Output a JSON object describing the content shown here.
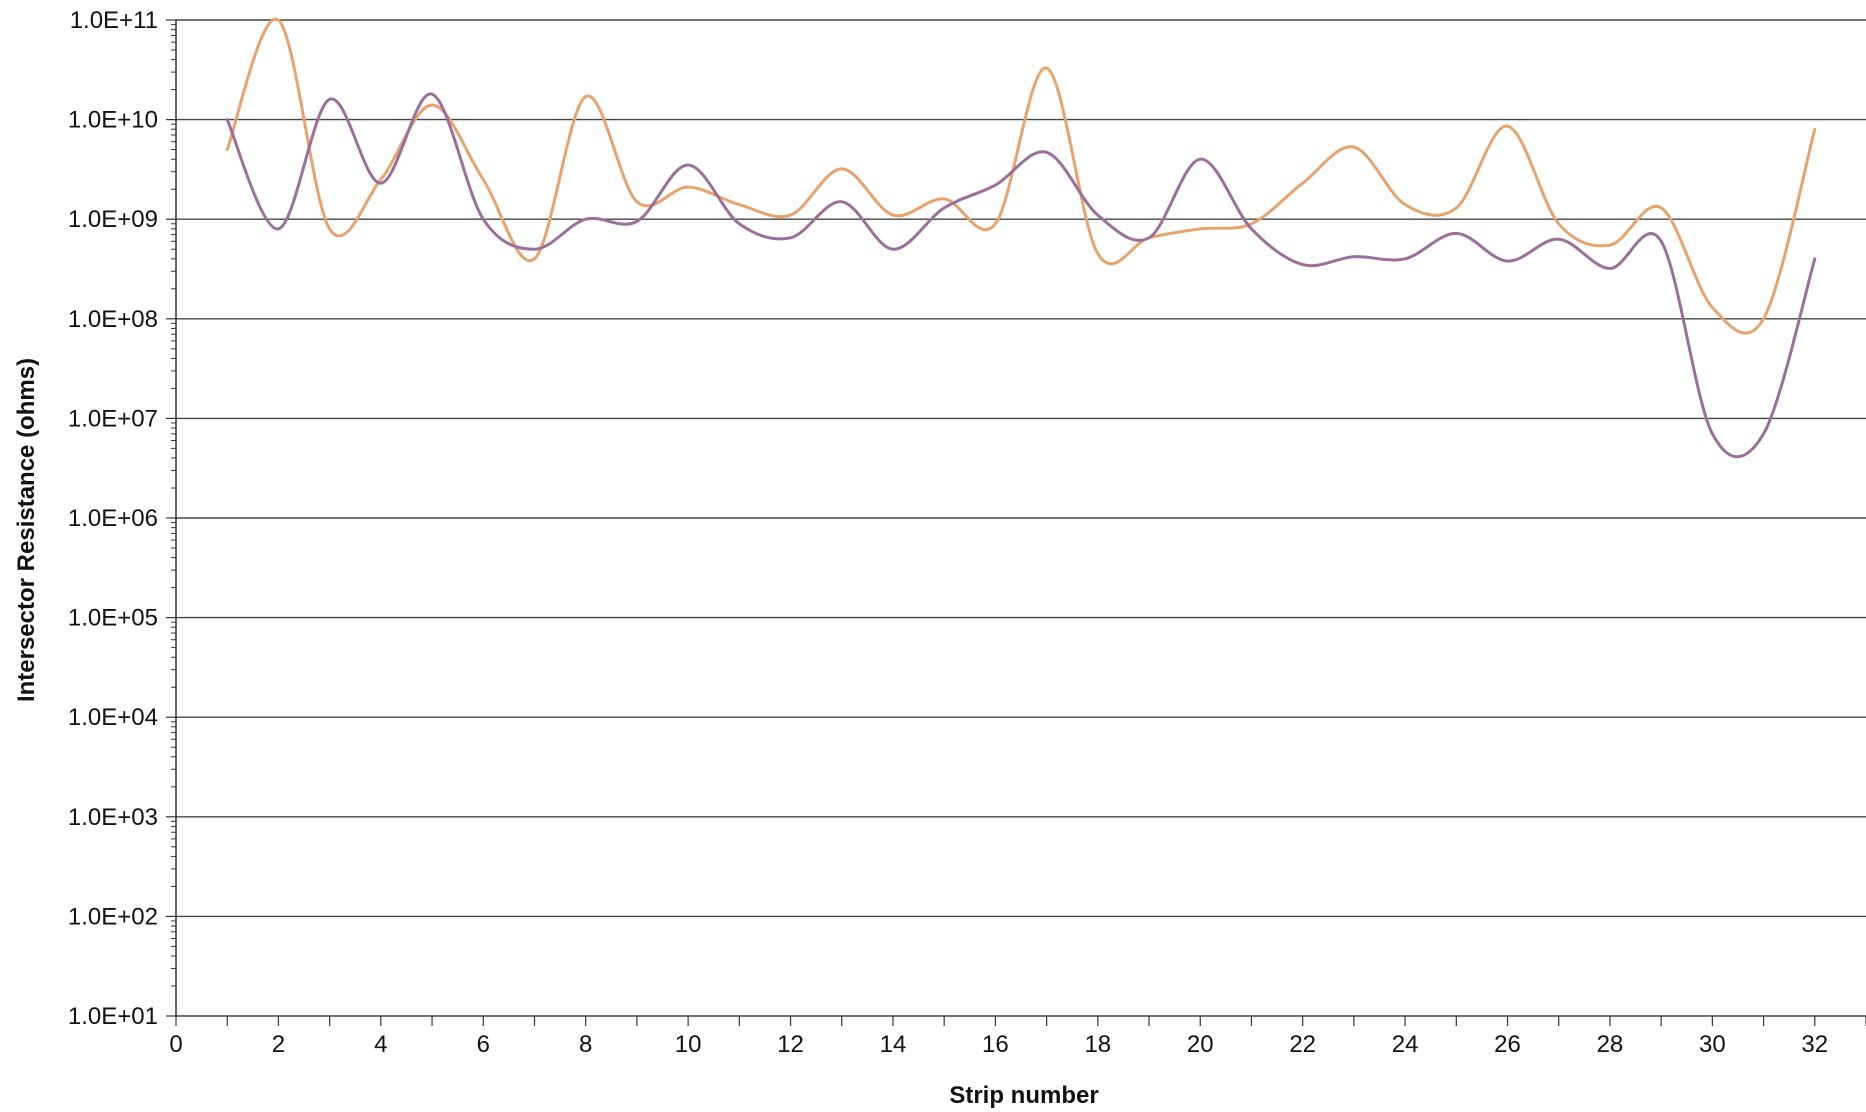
{
  "chart_data": {
    "type": "line",
    "title": "",
    "xlabel": "Strip number",
    "ylabel": "Intersector Resistance (ohms)",
    "xlim": [
      0,
      33
    ],
    "ylim": [
      10,
      100000000000
    ],
    "yscale": "log",
    "grid": "horizontal major gridlines",
    "legend": "none",
    "x_ticks": [
      "0",
      "2",
      "4",
      "6",
      "8",
      "10",
      "12",
      "14",
      "16",
      "18",
      "20",
      "22",
      "24",
      "26",
      "28",
      "30",
      "32"
    ],
    "y_ticks": [
      "1.0E+01",
      "1.0E+02",
      "1.0E+03",
      "1.0E+04",
      "1.0E+05",
      "1.0E+06",
      "1.0E+07",
      "1.0E+08",
      "1.0E+09",
      "1.0E+10",
      "1.0E+11"
    ],
    "x": [
      1,
      2,
      3,
      4,
      5,
      6,
      7,
      8,
      9,
      10,
      11,
      12,
      13,
      14,
      15,
      16,
      17,
      18,
      19,
      20,
      21,
      22,
      23,
      24,
      25,
      26,
      27,
      28,
      29,
      30,
      31,
      32
    ],
    "series": [
      {
        "color": "#e8a36c",
        "values": [
          5000000000.0,
          100000000000.0,
          800000000.0,
          2500000000.0,
          14000000000.0,
          2500000000.0,
          400000000.0,
          17000000000.0,
          1500000000.0,
          2100000000.0,
          1400000000.0,
          1100000000.0,
          3200000000.0,
          1100000000.0,
          1600000000.0,
          900000000.0,
          33000000000.0,
          450000000.0,
          650000000.0,
          800000000.0,
          900000000.0,
          2300000000.0,
          5300000000.0,
          1400000000.0,
          1300000000.0,
          8600000000.0,
          900000000.0,
          550000000.0,
          1300000000.0,
          130000000.0,
          100000000.0,
          8000000000.0
        ]
      },
      {
        "color": "#9b6e9b",
        "values": [
          10000000000.0,
          800000000.0,
          16000000000.0,
          2300000000.0,
          18000000000.0,
          1000000000.0,
          500000000.0,
          1000000000.0,
          950000000.0,
          3500000000.0,
          900000000.0,
          650000000.0,
          1500000000.0,
          500000000.0,
          1300000000.0,
          2200000000.0,
          4700000000.0,
          1100000000.0,
          650000000.0,
          4000000000.0,
          800000000.0,
          350000000.0,
          420000000.0,
          400000000.0,
          720000000.0,
          380000000.0,
          630000000.0,
          320000000.0,
          600000000.0,
          7000000.0,
          7000000.0,
          400000000.0
        ]
      }
    ]
  }
}
